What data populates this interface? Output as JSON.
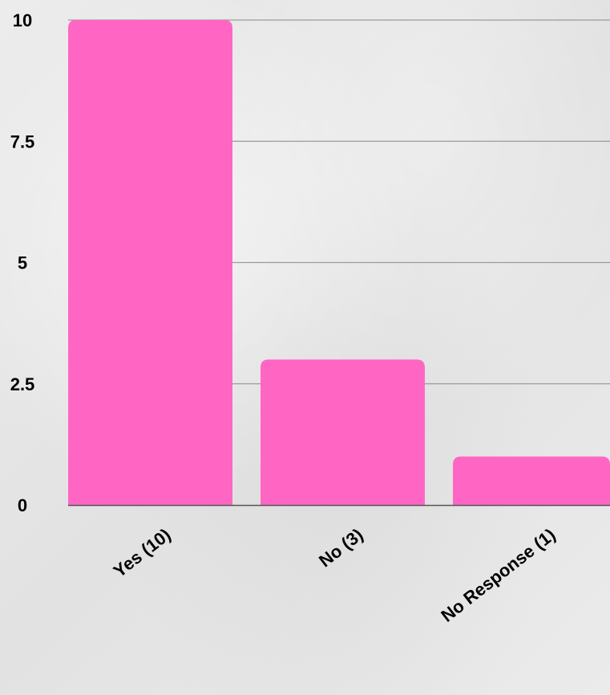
{
  "chart_data": {
    "type": "bar",
    "categories": [
      "Yes (10)",
      "No (3)",
      "No Response (1)"
    ],
    "values": [
      10,
      3,
      1
    ],
    "title": "",
    "xlabel": "",
    "ylabel": "",
    "ylim": [
      0,
      10
    ],
    "yticks": [
      "0",
      "2.5",
      "5",
      "7.5",
      "10"
    ],
    "ytick_values": [
      0,
      2.5,
      5,
      7.5,
      10
    ],
    "grid": true,
    "bar_color": "#ff66c4",
    "grid_color": "#9a9a9a",
    "axis_color": "#555555"
  }
}
